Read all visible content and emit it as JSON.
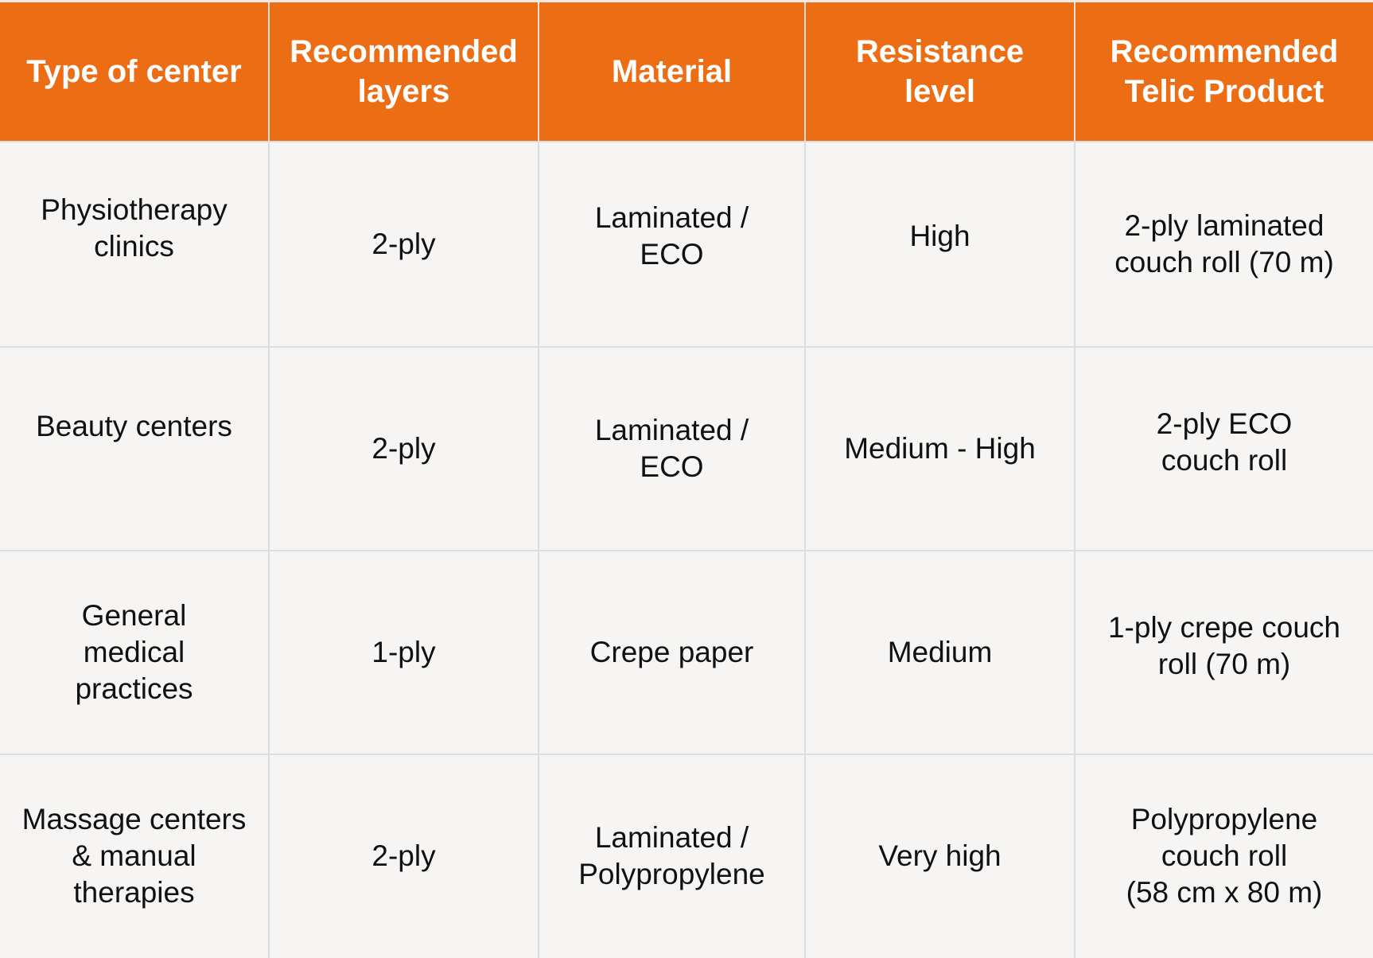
{
  "table": {
    "header_color": "#ec6d13",
    "headers": [
      {
        "label": "Type of center"
      },
      {
        "label": "Recommended\nlayers"
      },
      {
        "label": "Material"
      },
      {
        "label": "Resistance\nlevel"
      },
      {
        "label": "Recommended\nTelic Product"
      }
    ],
    "rows": [
      {
        "type_of_center": "Physiotherapy\nclinics",
        "recommended_layers": "2-ply",
        "material": "Laminated /\nECO",
        "resistance_level": "High",
        "recommended_product": "2-ply laminated\ncouch roll (70 m)"
      },
      {
        "type_of_center": "Beauty centers",
        "recommended_layers": "2-ply",
        "material": "Laminated /\nECO",
        "resistance_level": "Medium - High",
        "recommended_product": "2-ply ECO\ncouch roll"
      },
      {
        "type_of_center": "General\nmedical\npractices",
        "recommended_layers": "1-ply",
        "material": "Crepe paper",
        "resistance_level": "Medium",
        "recommended_product": "1-ply crepe couch\nroll (70 m)"
      },
      {
        "type_of_center": "Massage centers\n& manual\ntherapies",
        "recommended_layers": "2-ply",
        "material": "Laminated /\nPolypropylene",
        "resistance_level": "Very high",
        "recommended_product": "Polypropylene\ncouch roll\n(58 cm x 80 m)"
      }
    ]
  }
}
